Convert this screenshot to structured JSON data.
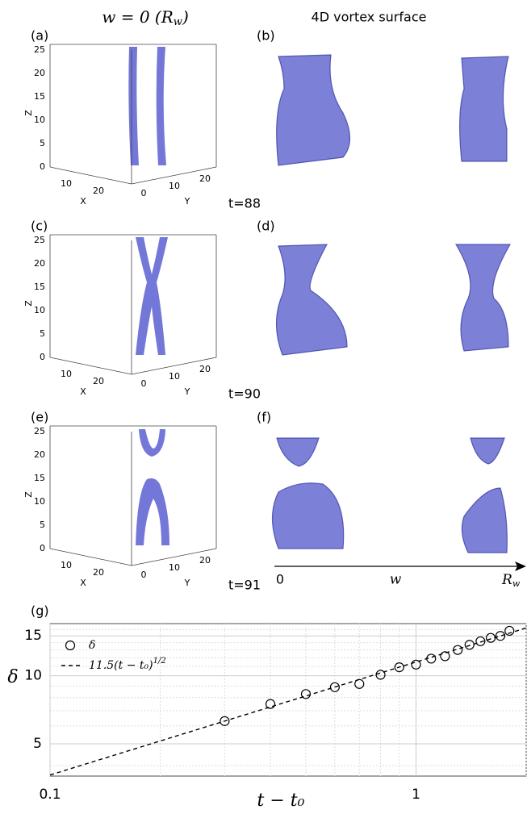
{
  "title_left": {
    "main": "w = 0 (R",
    "sub": "w",
    "end": ")"
  },
  "title_right": "4D vortex surface",
  "rows": [
    {
      "label_3d": "(a)",
      "label_4d": "(b)",
      "time": "t=88"
    },
    {
      "label_3d": "(c)",
      "label_4d": "(d)",
      "time": "t=90"
    },
    {
      "label_3d": "(e)",
      "label_4d": "(f)",
      "time": "t=91"
    }
  ],
  "axes_3d": {
    "z_label": "Z",
    "x_label": "X",
    "y_label": "Y",
    "z_ticks": [
      0,
      5,
      10,
      15,
      20,
      25
    ],
    "x_ticks": [
      10,
      20
    ],
    "y_ticks": [
      0,
      10,
      20
    ]
  },
  "w_axis": {
    "start": "0",
    "label": "w",
    "end_main": "R",
    "end_sub": "w"
  },
  "panel_g_label": "(g)",
  "chart_data": {
    "type": "scatter",
    "log_x": true,
    "log_y": true,
    "grid": true,
    "legend": "upper-left",
    "xlabel": "t − t₀",
    "ylabel": "δ",
    "xlim": [
      0.1,
      2
    ],
    "ylim": [
      3.6,
      17
    ],
    "xticks": [
      0.1,
      1
    ],
    "yticks": [
      5,
      10,
      15
    ],
    "x_minor_ticks": [
      0.2,
      0.3,
      0.4,
      0.5,
      0.6,
      0.7,
      0.8,
      0.9,
      2
    ],
    "y_minor_ticks": [
      4,
      6,
      7,
      8,
      9,
      11,
      12,
      13,
      14,
      16
    ],
    "series": [
      {
        "name": "δ",
        "color": "#000000",
        "style": "circle",
        "x": [
          0.3,
          0.4,
          0.5,
          0.6,
          0.7,
          0.8,
          0.9,
          1.0,
          1.1,
          1.2,
          1.3,
          1.4,
          1.5,
          1.6,
          1.7,
          1.8
        ],
        "values": [
          6.3,
          7.5,
          8.3,
          8.9,
          9.2,
          10.1,
          10.9,
          11.2,
          11.9,
          12.2,
          13.0,
          13.7,
          14.2,
          14.7,
          15.0,
          15.8
        ]
      },
      {
        "name": "11.5(t − t₀)",
        "name_exponent": "1/2",
        "color": "#000000",
        "style": "dashed",
        "x": [
          0.1,
          2
        ],
        "values": [
          3.64,
          16.26
        ]
      }
    ]
  }
}
